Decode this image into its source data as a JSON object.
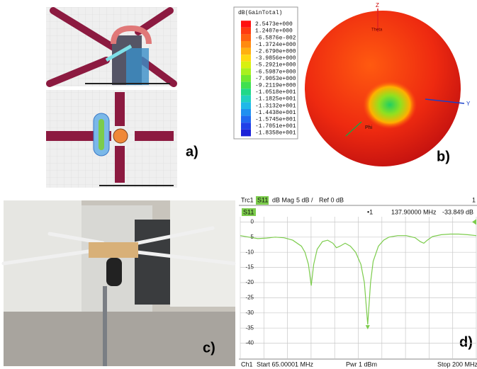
{
  "panels": {
    "a": {
      "label": "a)"
    },
    "b": {
      "label": "b)",
      "legend_title": "dB(GainTotal)",
      "legend_values": [
        "2.5473e+000",
        "1.2407e+000",
        "-6.5876e-002",
        "-1.3724e+000",
        "-2.6790e+000",
        "-3.9856e+000",
        "-5.2921e+000",
        "-6.5987e+000",
        "-7.9053e+000",
        "-9.2119e+000",
        "-1.0518e+001",
        "-1.1825e+001",
        "-1.3132e+001",
        "-1.4438e+001",
        "-1.5745e+001",
        "-1.7051e+001",
        "-1.8358e+001"
      ],
      "axis_z": "Z",
      "axis_y": "Y",
      "axis_phi": "Phi",
      "axis_theta": "Theta"
    },
    "c": {
      "label": "c)"
    },
    "d": {
      "label": "d)",
      "trace": "Trc1",
      "param": "S11",
      "format": "dB Mag",
      "scale": "5 dB /",
      "ref": "Ref 0 dB",
      "trace_no": "1",
      "marker_name": "•1",
      "marker_freq": "137.90000 MHz",
      "marker_value": "-33.849 dB",
      "channel": "Ch1",
      "start": "Start 65.00001 MHz",
      "power": "Pwr 1 dBm",
      "stop": "Stop 200 MHz"
    }
  },
  "chart_data": {
    "type": "line",
    "color": "#7ccc4c",
    "x": [
      65,
      70,
      75,
      80,
      85,
      90,
      95,
      100,
      102,
      104,
      105.6,
      107,
      109,
      112,
      115,
      118,
      120,
      122,
      125,
      128,
      131,
      134,
      136,
      137.9,
      139.5,
      141,
      144,
      147,
      150,
      155,
      160,
      165,
      168,
      170,
      172,
      175,
      180,
      185,
      190,
      195,
      200
    ],
    "values": [
      -4.5,
      -5,
      -5.5,
      -5.3,
      -5,
      -5.2,
      -6,
      -8,
      -10,
      -14,
      -21,
      -14,
      -9,
      -6.5,
      -6,
      -7,
      -8.5,
      -8,
      -7,
      -8,
      -10,
      -14,
      -20,
      -33.8,
      -20,
      -13,
      -8,
      -6,
      -5,
      -4.5,
      -4.5,
      -5.2,
      -6.5,
      -7,
      -6,
      -4.8,
      -4.2,
      -4,
      -4,
      -4.2,
      -4.5
    ],
    "xlim": [
      65.00001,
      200
    ],
    "ylim": [
      -45,
      5
    ],
    "yticks": [
      0,
      -5,
      -10,
      -15,
      -20,
      -25,
      -30,
      -35,
      -40
    ],
    "grid": true
  }
}
